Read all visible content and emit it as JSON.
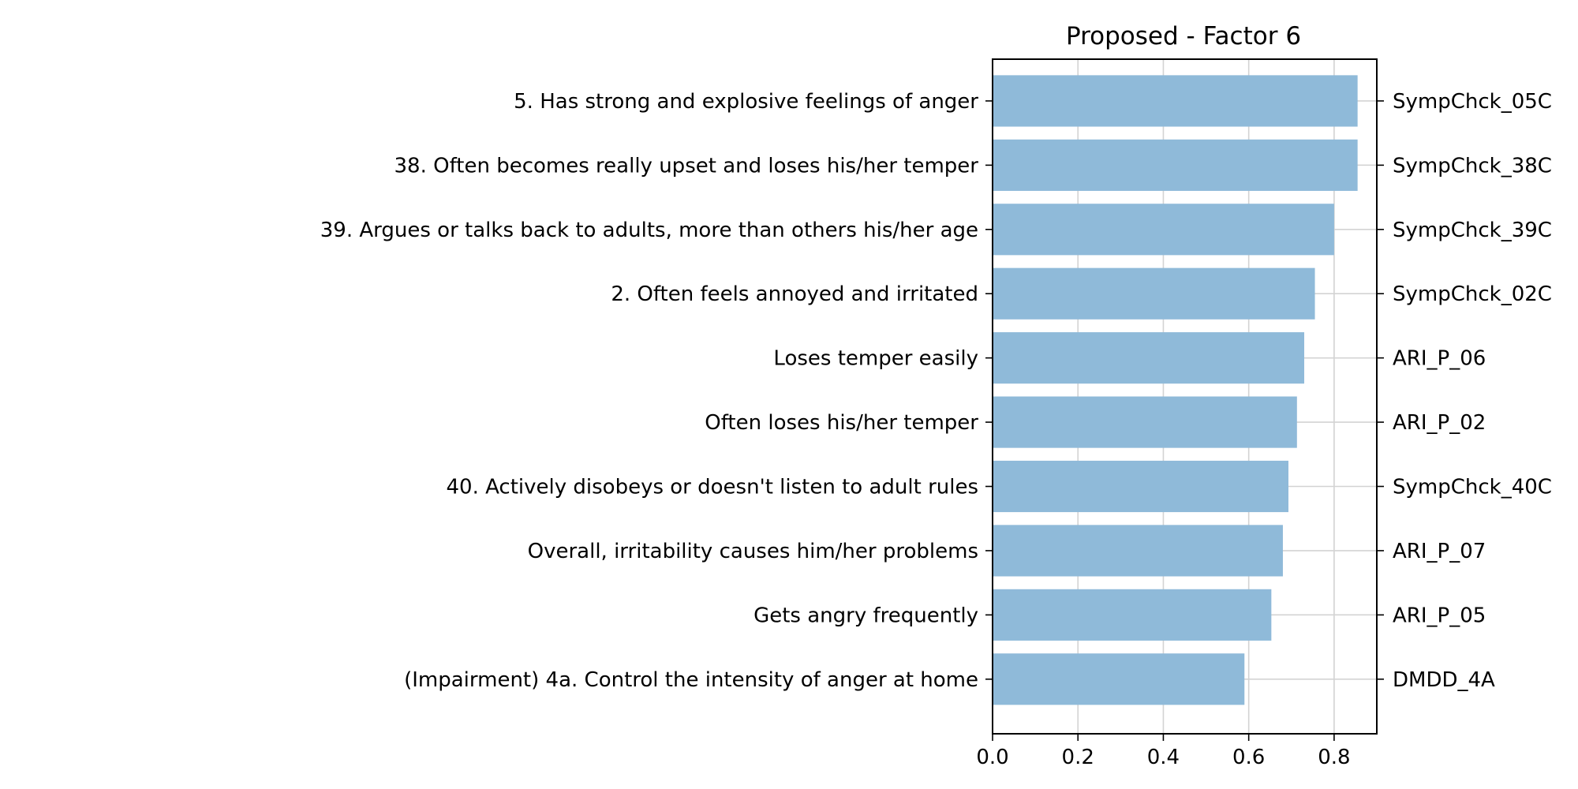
{
  "chart_data": {
    "type": "bar",
    "orientation": "horizontal",
    "title": "Proposed - Factor 6",
    "xlabel": "",
    "ylabel": "",
    "xlim": [
      0,
      0.9
    ],
    "xticks": [
      "0.0",
      "0.2",
      "0.4",
      "0.6",
      "0.8"
    ],
    "xtick_values": [
      0,
      0.2,
      0.4,
      0.6,
      0.8
    ],
    "grid": true,
    "bar_color": "#8fbad9",
    "categories": [
      "5. Has strong and explosive feelings of anger",
      "38. Often becomes really upset and loses his/her temper",
      "39. Argues or talks back to adults, more than others his/her age",
      "2. Often feels annoyed and irritated",
      "Loses temper easily",
      "Often loses his/her temper",
      "40. Actively disobeys or doesn't listen to adult rules",
      "Overall, irritability causes him/her problems",
      "Gets angry frequently",
      "(Impairment) 4a. Control the intensity of anger at home"
    ],
    "codes": [
      "SympChck_05C",
      "SympChck_38C",
      "SympChck_39C",
      "SympChck_02C",
      "ARI_P_06",
      "ARI_P_02",
      "SympChck_40C",
      "ARI_P_07",
      "ARI_P_05",
      "DMDD_4A"
    ],
    "values": [
      0.855,
      0.855,
      0.8,
      0.755,
      0.73,
      0.713,
      0.693,
      0.68,
      0.653,
      0.59
    ]
  }
}
